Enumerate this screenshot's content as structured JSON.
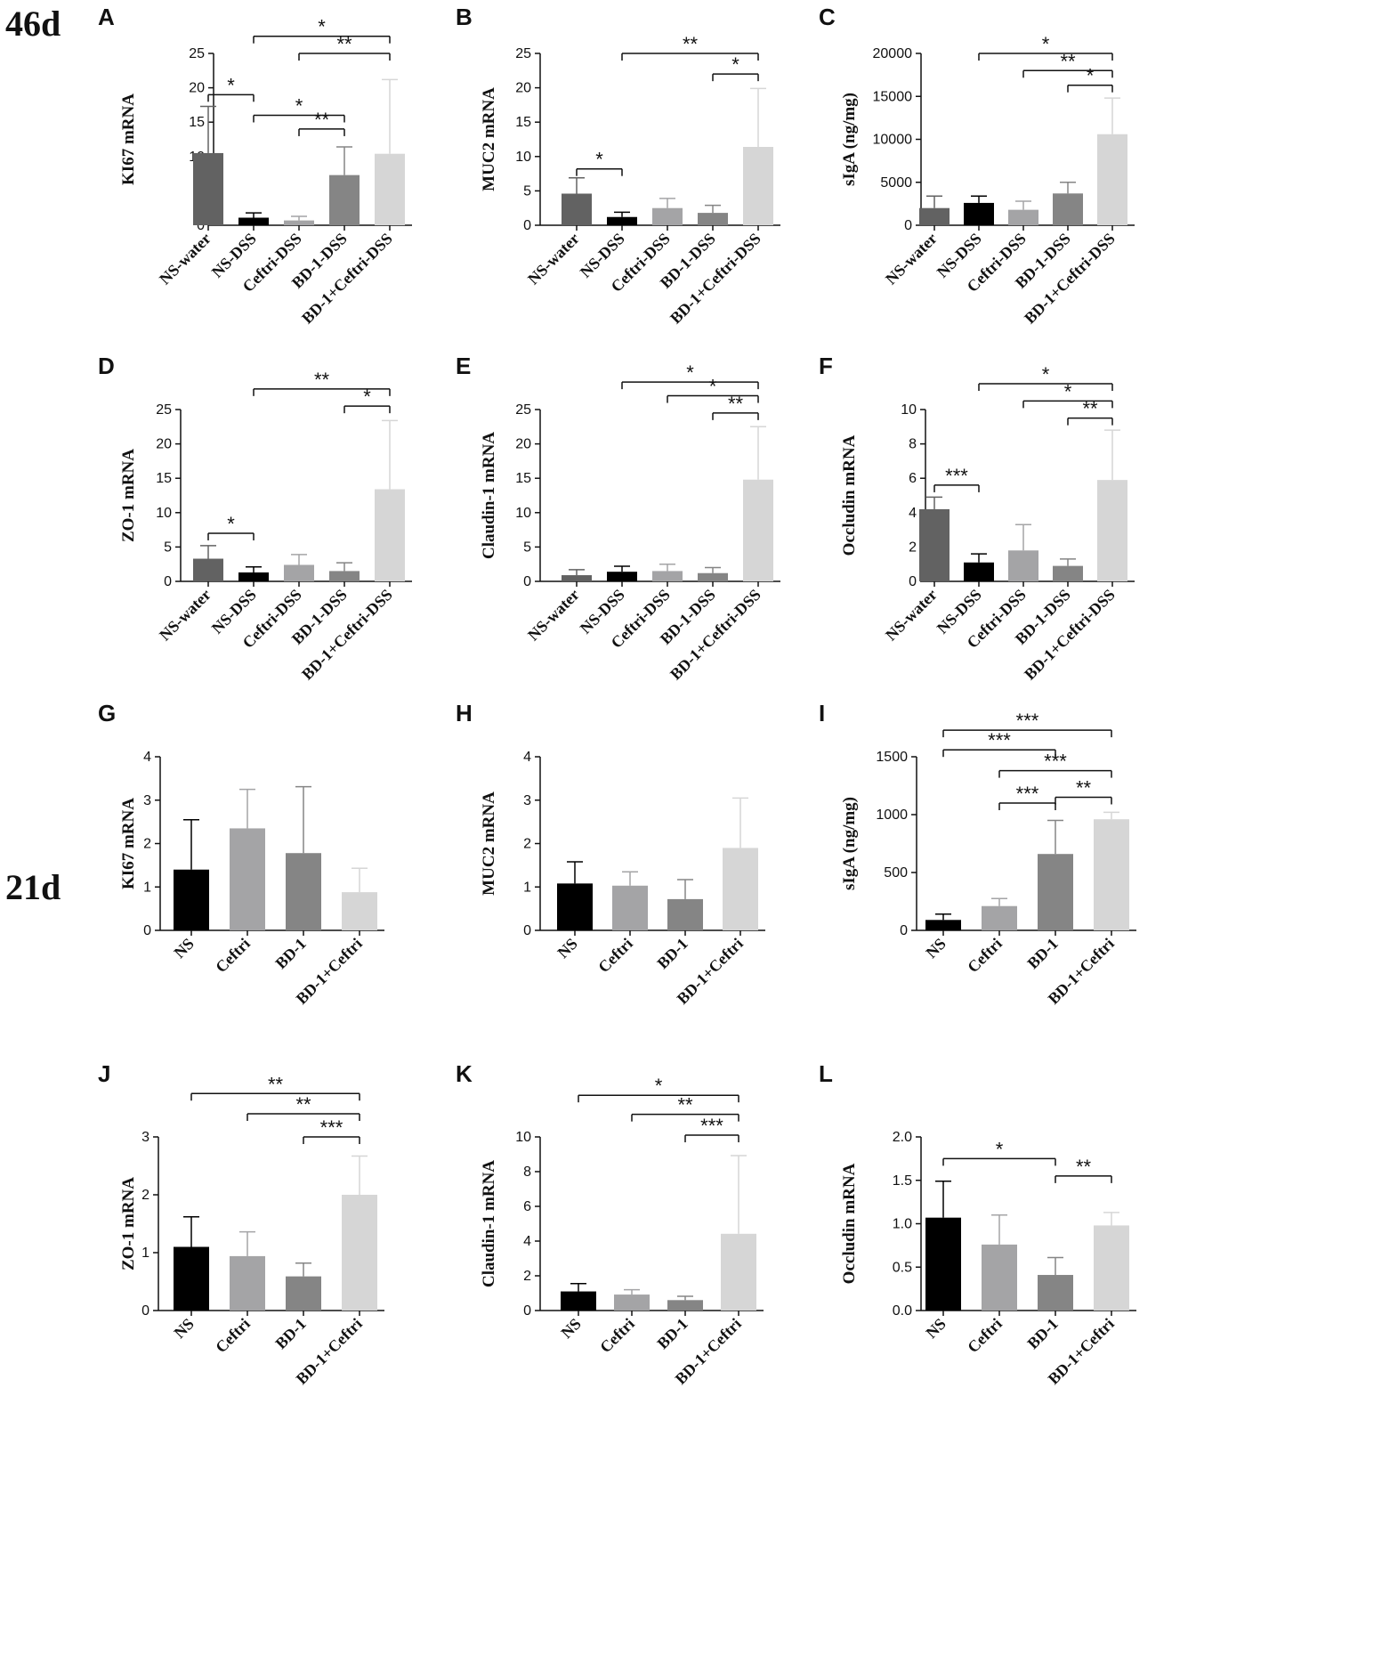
{
  "groups": [
    "46d",
    "21d"
  ],
  "colors": {
    "black": "#000000",
    "dark": "#626262",
    "gray": "#a4a4a6",
    "mid": "#858585",
    "light": "#d6d6d6",
    "sig_line": "#111111",
    "axis": "#111111"
  },
  "chart_data": [
    {
      "panel": "A",
      "type": "bar",
      "ylabel": "KI67 mRNA",
      "categories": [
        "NS-water",
        "NS-DSS",
        "Ceftri-DSS",
        "BD-1-DSS",
        "BD-1+Ceftri-DSS"
      ],
      "values": [
        10.5,
        1.1,
        0.7,
        7.3,
        10.4
      ],
      "errors": [
        6.8,
        0.7,
        0.6,
        4.1,
        10.8
      ],
      "ylim": [
        0,
        25
      ],
      "yticks": [
        "0",
        "5",
        "10",
        "15",
        "20",
        "25"
      ],
      "colors": [
        "#626262",
        "#000000",
        "#a4a4a6",
        "#858585",
        "#d6d6d6"
      ],
      "significance": [
        {
          "from": 0,
          "to": 1,
          "y": 19,
          "label": "*"
        },
        {
          "from": 1,
          "to": 3,
          "y": 16,
          "label": "*"
        },
        {
          "from": 2,
          "to": 3,
          "y": 14,
          "label": "**"
        },
        {
          "from": 1,
          "to": 4,
          "y": 27.5,
          "label": "*"
        },
        {
          "from": 2,
          "to": 4,
          "y": 25,
          "label": "**"
        }
      ]
    },
    {
      "panel": "B",
      "type": "bar",
      "ylabel": "MUC2 mRNA",
      "categories": [
        "NS-water",
        "NS-DSS",
        "Ceftri-DSS",
        "BD-1-DSS",
        "BD-1+Ceftri-DSS"
      ],
      "values": [
        4.6,
        1.2,
        2.5,
        1.8,
        11.4
      ],
      "errors": [
        2.3,
        0.7,
        1.4,
        1.1,
        8.5
      ],
      "ylim": [
        0,
        25
      ],
      "yticks": [
        "0",
        "5",
        "10",
        "15",
        "20",
        "25"
      ],
      "colors": [
        "#626262",
        "#000000",
        "#a4a4a6",
        "#858585",
        "#d6d6d6"
      ],
      "significance": [
        {
          "from": 0,
          "to": 1,
          "y": 8.2,
          "label": "*"
        },
        {
          "from": 1,
          "to": 4,
          "y": 25,
          "label": "**"
        },
        {
          "from": 3,
          "to": 4,
          "y": 22,
          "label": "*"
        }
      ]
    },
    {
      "panel": "C",
      "type": "bar",
      "ylabel": "sIgA (ng/mg)",
      "categories": [
        "NS-water",
        "NS-DSS",
        "Ceftri-DSS",
        "BD-1-DSS",
        "BD-1+Ceftri-DSS"
      ],
      "values": [
        2000,
        2600,
        1800,
        3700,
        10600
      ],
      "errors": [
        1400,
        800,
        1000,
        1300,
        4200
      ],
      "ylim": [
        0,
        20000
      ],
      "yticks": [
        "0",
        "5000",
        "10000",
        "15000",
        "20000"
      ],
      "colors": [
        "#626262",
        "#000000",
        "#a4a4a6",
        "#858585",
        "#d6d6d6"
      ],
      "significance": [
        {
          "from": 1,
          "to": 4,
          "y": 20000,
          "label": "*"
        },
        {
          "from": 2,
          "to": 4,
          "y": 18000,
          "label": "**"
        },
        {
          "from": 3,
          "to": 4,
          "y": 16300,
          "label": "*"
        }
      ]
    },
    {
      "panel": "D",
      "type": "bar",
      "ylabel": "ZO-1 mRNA",
      "categories": [
        "NS-water",
        "NS-DSS",
        "Ceftri-DSS",
        "BD-1-DSS",
        "BD-1+Ceftri-DSS"
      ],
      "values": [
        3.3,
        1.3,
        2.4,
        1.5,
        13.4
      ],
      "errors": [
        1.9,
        0.8,
        1.5,
        1.2,
        10.0
      ],
      "ylim": [
        0,
        25
      ],
      "yticks": [
        "0",
        "5",
        "10",
        "15",
        "20",
        "25"
      ],
      "colors": [
        "#626262",
        "#000000",
        "#a4a4a6",
        "#858585",
        "#d6d6d6"
      ],
      "significance": [
        {
          "from": 0,
          "to": 1,
          "y": 7,
          "label": "*"
        },
        {
          "from": 1,
          "to": 4,
          "y": 28,
          "label": "**"
        },
        {
          "from": 3,
          "to": 4,
          "y": 25.5,
          "label": "*"
        }
      ]
    },
    {
      "panel": "E",
      "type": "bar",
      "ylabel": "Claudin-1 mRNA",
      "categories": [
        "NS-water",
        "NS-DSS",
        "Ceftri-DSS",
        "BD-1-DSS",
        "BD-1+Ceftri-DSS"
      ],
      "values": [
        0.9,
        1.4,
        1.5,
        1.2,
        14.8
      ],
      "errors": [
        0.8,
        0.8,
        1.0,
        0.8,
        7.7
      ],
      "ylim": [
        0,
        25
      ],
      "yticks": [
        "0",
        "5",
        "10",
        "15",
        "20",
        "25"
      ],
      "colors": [
        "#626262",
        "#000000",
        "#a4a4a6",
        "#858585",
        "#d6d6d6"
      ],
      "significance": [
        {
          "from": 1,
          "to": 4,
          "y": 29,
          "label": "*"
        },
        {
          "from": 2,
          "to": 4,
          "y": 27,
          "label": "*"
        },
        {
          "from": 3,
          "to": 4,
          "y": 24.5,
          "label": "**"
        }
      ]
    },
    {
      "panel": "F",
      "type": "bar",
      "ylabel": "Occludin mRNA",
      "categories": [
        "NS-water",
        "NS-DSS",
        "Ceftri-DSS",
        "BD-1-DSS",
        "BD-1+Ceftri-DSS"
      ],
      "values": [
        4.2,
        1.1,
        1.8,
        0.9,
        5.9
      ],
      "errors": [
        0.7,
        0.5,
        1.5,
        0.4,
        2.9
      ],
      "ylim": [
        0,
        10
      ],
      "yticks": [
        "0",
        "2",
        "4",
        "6",
        "8",
        "10"
      ],
      "colors": [
        "#626262",
        "#000000",
        "#a4a4a6",
        "#858585",
        "#d6d6d6"
      ],
      "significance": [
        {
          "from": 0,
          "to": 1,
          "y": 5.6,
          "label": "***"
        },
        {
          "from": 1,
          "to": 4,
          "y": 11.5,
          "label": "*"
        },
        {
          "from": 2,
          "to": 4,
          "y": 10.5,
          "label": "*"
        },
        {
          "from": 3,
          "to": 4,
          "y": 9.5,
          "label": "**"
        }
      ]
    },
    {
      "panel": "G",
      "type": "bar",
      "ylabel": "KI67 mRNA",
      "categories": [
        "NS",
        "Ceftri",
        "BD-1",
        "BD-1+Ceftri"
      ],
      "values": [
        1.4,
        2.35,
        1.78,
        0.88
      ],
      "errors": [
        1.15,
        0.9,
        1.53,
        0.55
      ],
      "ylim": [
        0,
        4
      ],
      "yticks": [
        "0",
        "1",
        "2",
        "3",
        "4"
      ],
      "colors": [
        "#000000",
        "#a4a4a6",
        "#858585",
        "#d6d6d6"
      ],
      "significance": []
    },
    {
      "panel": "H",
      "type": "bar",
      "ylabel": "MUC2 mRNA",
      "categories": [
        "NS",
        "Ceftri",
        "BD-1",
        "BD-1+Ceftri"
      ],
      "values": [
        1.08,
        1.03,
        0.72,
        1.9
      ],
      "errors": [
        0.5,
        0.32,
        0.45,
        1.15
      ],
      "ylim": [
        0,
        4
      ],
      "yticks": [
        "0",
        "1",
        "2",
        "3",
        "4"
      ],
      "colors": [
        "#000000",
        "#a4a4a6",
        "#858585",
        "#d6d6d6"
      ],
      "significance": []
    },
    {
      "panel": "I",
      "type": "bar",
      "ylabel": "sIgA (ng/mg)",
      "categories": [
        "NS",
        "Ceftri",
        "BD-1",
        "BD-1+Ceftri"
      ],
      "values": [
        90,
        210,
        660,
        960
      ],
      "errors": [
        50,
        65,
        290,
        60
      ],
      "ylim": [
        0,
        1500
      ],
      "yticks": [
        "0",
        "500",
        "1000",
        "1500"
      ],
      "colors": [
        "#000000",
        "#a4a4a6",
        "#858585",
        "#d6d6d6"
      ],
      "significance": [
        {
          "from": 0,
          "to": 3,
          "y": 1730,
          "label": "***"
        },
        {
          "from": 0,
          "to": 2,
          "y": 1560,
          "label": "***"
        },
        {
          "from": 1,
          "to": 3,
          "y": 1380,
          "label": "***"
        },
        {
          "from": 1,
          "to": 2,
          "y": 1100,
          "label": "***"
        },
        {
          "from": 2,
          "to": 3,
          "y": 1150,
          "label": "**"
        }
      ]
    },
    {
      "panel": "J",
      "type": "bar",
      "ylabel": "ZO-1 mRNA",
      "categories": [
        "NS",
        "Ceftri",
        "BD-1",
        "BD-1+Ceftri"
      ],
      "values": [
        1.1,
        0.94,
        0.59,
        2.0
      ],
      "errors": [
        0.52,
        0.42,
        0.23,
        0.67
      ],
      "ylim": [
        0,
        3
      ],
      "yticks": [
        "0",
        "1",
        "2",
        "3"
      ],
      "colors": [
        "#000000",
        "#a4a4a6",
        "#858585",
        "#d6d6d6"
      ],
      "significance": [
        {
          "from": 0,
          "to": 3,
          "y": 3.75,
          "label": "**"
        },
        {
          "from": 1,
          "to": 3,
          "y": 3.4,
          "label": "**"
        },
        {
          "from": 2,
          "to": 3,
          "y": 3.0,
          "label": "***"
        }
      ]
    },
    {
      "panel": "K",
      "type": "bar",
      "ylabel": "Claudin-1 mRNA",
      "categories": [
        "NS",
        "Ceftri",
        "BD-1",
        "BD-1+Ceftri"
      ],
      "values": [
        1.1,
        0.92,
        0.6,
        4.42
      ],
      "errors": [
        0.45,
        0.28,
        0.22,
        4.5
      ],
      "ylim": [
        0,
        10
      ],
      "yticks": [
        "0",
        "2",
        "4",
        "6",
        "8",
        "10"
      ],
      "colors": [
        "#000000",
        "#a4a4a6",
        "#858585",
        "#d6d6d6"
      ],
      "significance": [
        {
          "from": 0,
          "to": 3,
          "y": 12.4,
          "label": "*"
        },
        {
          "from": 1,
          "to": 3,
          "y": 11.3,
          "label": "**"
        },
        {
          "from": 2,
          "to": 3,
          "y": 10.1,
          "label": "***"
        }
      ]
    },
    {
      "panel": "L",
      "type": "bar",
      "ylabel": "Occludin mRNA",
      "categories": [
        "NS",
        "Ceftri",
        "BD-1",
        "BD-1+Ceftri"
      ],
      "values": [
        1.07,
        0.76,
        0.41,
        0.98
      ],
      "errors": [
        0.42,
        0.34,
        0.2,
        0.15
      ],
      "ylim": [
        0,
        2.0
      ],
      "yticks": [
        "0.0",
        "0.5",
        "1.0",
        "1.5",
        "2.0"
      ],
      "colors": [
        "#000000",
        "#a4a4a6",
        "#858585",
        "#d6d6d6"
      ],
      "significance": [
        {
          "from": 0,
          "to": 2,
          "y": 1.75,
          "label": "*"
        },
        {
          "from": 2,
          "to": 3,
          "y": 1.55,
          "label": "**"
        }
      ]
    }
  ]
}
